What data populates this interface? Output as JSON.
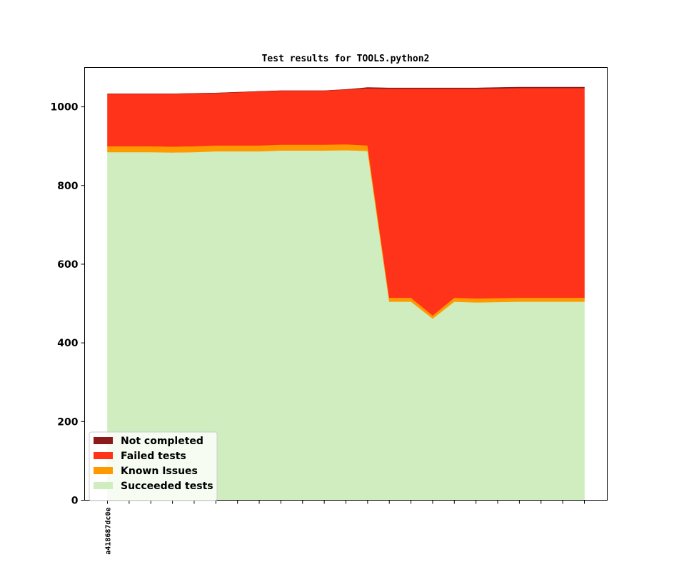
{
  "chart_data": {
    "type": "area",
    "title": "Test results for TOOLS.python2",
    "xlabel": "",
    "ylabel": "",
    "ylim": [
      0,
      1100
    ],
    "yticks": [
      0,
      200,
      400,
      600,
      800,
      1000
    ],
    "x_count": 23,
    "x_tick_labels": [
      {
        "index": 0,
        "label": "a418687dc0e"
      }
    ],
    "stacked": true,
    "grid": false,
    "legend_position": "lower-left",
    "series": [
      {
        "name": "Succeeded tests",
        "color": "#cfedbf",
        "values": [
          885,
          885,
          885,
          884,
          885,
          887,
          887,
          887,
          889,
          889,
          889,
          890,
          888,
          505,
          505,
          462,
          505,
          503,
          504,
          505,
          505,
          505,
          505
        ]
      },
      {
        "name": "Known Issues",
        "color": "#ff9900",
        "values": [
          15,
          15,
          15,
          15,
          15,
          15,
          15,
          15,
          15,
          15,
          15,
          15,
          14,
          10,
          10,
          8,
          10,
          10,
          10,
          10,
          10,
          10,
          10
        ]
      },
      {
        "name": "Failed tests",
        "color": "#ff331a",
        "values": [
          133,
          133,
          133,
          134,
          134,
          133,
          135,
          137,
          137,
          137,
          137,
          139,
          145,
          531,
          531,
          576,
          531,
          533,
          533,
          533,
          533,
          533,
          533
        ]
      },
      {
        "name": "Not completed",
        "color": "#8b1a1a",
        "values": [
          0,
          0,
          0,
          0,
          0,
          0,
          0,
          0,
          0,
          0,
          0,
          0,
          2,
          2,
          2,
          2,
          2,
          2,
          2,
          2,
          2,
          2,
          2
        ]
      }
    ],
    "legend_order": [
      "Not completed",
      "Failed tests",
      "Known Issues",
      "Succeeded tests"
    ]
  }
}
